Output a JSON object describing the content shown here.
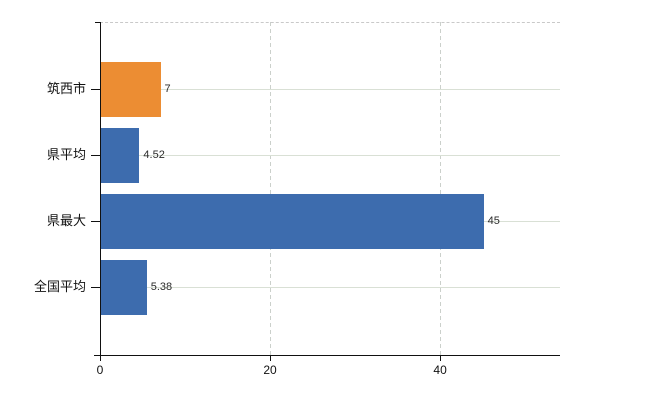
{
  "chart_data": {
    "type": "bar",
    "orientation": "horizontal",
    "title": "",
    "xlabel": "",
    "ylabel": "",
    "categories": [
      "筑西市",
      "県平均",
      "県最大",
      "全国平均"
    ],
    "values": [
      7,
      4.52,
      45,
      5.38
    ],
    "value_labels": [
      "7",
      "4.52",
      "45",
      "5.38"
    ],
    "bar_colors": [
      "#ec8d33",
      "#3d6cae",
      "#3d6cae",
      "#3d6cae"
    ],
    "x_ticks": [
      0,
      20,
      40
    ],
    "x_tick_labels": [
      "0",
      "20",
      "40"
    ],
    "xlim": [
      0,
      54.1
    ],
    "grid": "on",
    "legend": "none",
    "colors": {
      "orange_bar": "#ec8d33",
      "blue_bar": "#3d6cae",
      "axis": "#111111",
      "grid_horizontal": "#d9e0d5",
      "grid_vertical_dashed": "#cbd0cb",
      "plot_top_border_dashed": "#c9c9c9",
      "background": "#ffffff"
    }
  }
}
